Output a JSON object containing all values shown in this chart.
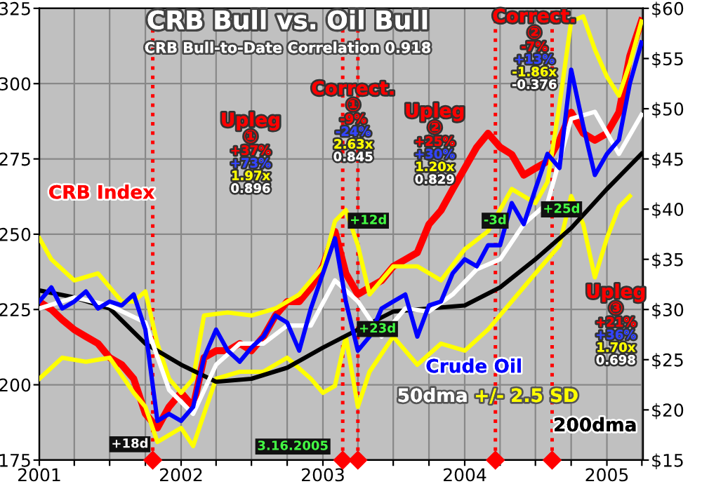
{
  "chart_data": {
    "type": "line",
    "title": "CRB Bull vs. Oil Bull",
    "subtitle": "CRB Bull-to-Date Correlation 0.918",
    "x": [
      "2001-01",
      "2001-02",
      "2001-03",
      "2001-04",
      "2001-05",
      "2001-06",
      "2001-07",
      "2001-08",
      "2001-09",
      "2001-10",
      "2001-11",
      "2001-12",
      "2002-01",
      "2002-02",
      "2002-03",
      "2002-04",
      "2002-05",
      "2002-06",
      "2002-07",
      "2002-08",
      "2002-09",
      "2002-10",
      "2002-11",
      "2002-12",
      "2003-01",
      "2003-02",
      "2003-03",
      "2003-04",
      "2003-05",
      "2003-06",
      "2003-07",
      "2003-08",
      "2003-09",
      "2003-10",
      "2003-11",
      "2003-12",
      "2004-01",
      "2004-02",
      "2004-03",
      "2004-04",
      "2004-05",
      "2004-06",
      "2004-07",
      "2004-08",
      "2004-09",
      "2004-10",
      "2004-11",
      "2004-12",
      "2005-01",
      "2005-02",
      "2005-03",
      "2005-03-31"
    ],
    "series": [
      {
        "name": "+/- 2.5 SD",
        "color": "#ffff00",
        "axis": "y2",
        "x": [
          "2001-01",
          "2001-02",
          "2001-04",
          "2001-06",
          "2001-08",
          "2001-09",
          "2001-10",
          "2001-11",
          "2001-12",
          "2002-01",
          "2002-02",
          "2002-03",
          "2002-05",
          "2002-07",
          "2002-09",
          "2002-11",
          "2003-01",
          "2003-02",
          "2003-03",
          "2003-04",
          "2003-05",
          "2003-07",
          "2003-09",
          "2003-11",
          "2004-01",
          "2004-03",
          "2004-05",
          "2004-07",
          "2004-08",
          "2004-09",
          "2004-10",
          "2004-11",
          "2004-12",
          "2005-01",
          "2005-02",
          "2005-03",
          "2005-03-31"
        ],
        "values": [
          37.1,
          35.0,
          32.9,
          33.6,
          30.8,
          30.8,
          31.8,
          26.6,
          23.1,
          21.7,
          23.1,
          29.4,
          29.7,
          29.4,
          30.1,
          31.5,
          34.3,
          38.8,
          39.9,
          36.4,
          31.5,
          34.3,
          34.3,
          32.9,
          36.0,
          37.8,
          42.0,
          40.6,
          42.7,
          50.4,
          58.7,
          59.2,
          55.9,
          53.2,
          51.3,
          54.5,
          58.7
        ]
      },
      {
        "color": "#ffff00",
        "axis": "y2",
        "x": [
          "2001-01",
          "2001-03",
          "2001-05",
          "2001-07",
          "2001-09",
          "2001-10",
          "2001-11",
          "2002-01",
          "2002-02",
          "2002-03",
          "2002-04",
          "2002-06",
          "2002-08",
          "2002-10",
          "2002-12",
          "2003-01",
          "2003-02",
          "2003-03",
          "2003-04",
          "2003-05",
          "2003-07",
          "2003-09",
          "2003-11",
          "2004-01",
          "2004-03",
          "2004-05",
          "2004-07",
          "2004-09",
          "2004-10",
          "2004-11",
          "2004-12",
          "2005-01",
          "2005-02",
          "2005-03"
        ],
        "values": [
          23.1,
          25.2,
          24.8,
          25.2,
          21.7,
          20.3,
          16.8,
          18.2,
          16.4,
          19.6,
          23.1,
          23.8,
          23.8,
          25.2,
          23.1,
          21.7,
          22.4,
          27.3,
          20.3,
          23.8,
          27.3,
          24.5,
          26.6,
          25.9,
          28.0,
          30.8,
          33.6,
          36.4,
          41.3,
          38.5,
          33.2,
          37.1,
          40.2,
          41.3
        ]
      },
      {
        "name": "200dma",
        "color": "#000000",
        "axis": "y2",
        "x": [
          "2001-01",
          "2001-04",
          "2001-07",
          "2001-10",
          "2002-01",
          "2002-04",
          "2002-07",
          "2002-10",
          "2003-01",
          "2003-04",
          "2003-07",
          "2003-10",
          "2004-01",
          "2004-04",
          "2004-07",
          "2004-10",
          "2005-01",
          "2005-03-31"
        ],
        "values": [
          31.9,
          31.2,
          30.1,
          26.6,
          24.5,
          22.8,
          23.1,
          24.2,
          26.2,
          28.0,
          29.8,
          30.1,
          30.4,
          32.2,
          35.0,
          38.1,
          42.0,
          45.5
        ]
      },
      {
        "name": "50dma",
        "color": "#ffffff",
        "axis": "y2",
        "x": [
          "2001-01",
          "2001-04",
          "2001-07",
          "2001-10",
          "2001-12",
          "2002-02",
          "2002-04",
          "2002-06",
          "2002-08",
          "2002-10",
          "2002-12",
          "2003-02",
          "2003-04",
          "2003-06",
          "2003-08",
          "2003-10",
          "2003-12",
          "2004-02",
          "2004-04",
          "2004-06",
          "2004-08",
          "2004-10",
          "2004-12",
          "2005-02",
          "2005-03-31"
        ],
        "values": [
          30.1,
          31.2,
          30.4,
          28.7,
          22.0,
          19.6,
          24.5,
          26.6,
          26.6,
          28.4,
          28.4,
          32.9,
          30.8,
          27.3,
          30.1,
          29.8,
          31.5,
          34.0,
          35.0,
          38.5,
          40.6,
          49.0,
          49.7,
          45.5,
          49.4
        ]
      },
      {
        "name": "CRB Index",
        "color": "#ff0000",
        "values": [
          227.6,
          225,
          221.6,
          218.3,
          216,
          213.7,
          209,
          206.7,
          202,
          190.4,
          185.7,
          192.7,
          197.4,
          192.7,
          209,
          211.3,
          211.3,
          213.7,
          211.3,
          216,
          223,
          227.6,
          227.6,
          232.3,
          239.3,
          250.9,
          237,
          230,
          232.3,
          234.6,
          239.3,
          241.6,
          243.9,
          253.3,
          257.9,
          264.9,
          271.9,
          278.9,
          283.5,
          278.9,
          276.5,
          269.6,
          271.9,
          274.2,
          281.2,
          290.5,
          283.5,
          281.2,
          283.5,
          290.5,
          309.2,
          320.8
        ]
      },
      {
        "name": "Crude Oil",
        "color": "#0000ff",
        "axis": "y2",
        "values": [
          30.8,
          32.2,
          30.1,
          30.8,
          31.8,
          30.1,
          30.8,
          30.4,
          31.5,
          28.0,
          18.9,
          19.6,
          18.9,
          20.3,
          25.2,
          28.0,
          25.9,
          24.8,
          26.2,
          27.3,
          29.4,
          28.7,
          25.9,
          30.1,
          33.6,
          37.1,
          30.8,
          25.9,
          27.3,
          30.1,
          30.8,
          31.5,
          27.3,
          30.4,
          30.8,
          33.6,
          35.0,
          34.3,
          36.4,
          36.4,
          40.6,
          38.5,
          42.0,
          45.5,
          44.1,
          53.9,
          48.3,
          43.4,
          45.5,
          46.9,
          52.5,
          56.6
        ]
      }
    ],
    "xlim": [
      "2001-01-01",
      "2005-04-04"
    ],
    "xticks": [
      {
        "value": "2001-01-01",
        "label": "2001"
      },
      {
        "value": "2001-04-01",
        "label": null
      },
      {
        "value": "2001-07-01",
        "label": null
      },
      {
        "value": "2001-10-01",
        "label": null
      },
      {
        "value": "2002-01-01",
        "label": "2002"
      },
      {
        "value": "2002-04-01",
        "label": null
      },
      {
        "value": "2002-07-01",
        "label": null
      },
      {
        "value": "2002-10-01",
        "label": null
      },
      {
        "value": "2003-01-01",
        "label": "2003"
      },
      {
        "value": "2003-04-01",
        "label": null
      },
      {
        "value": "2003-07-01",
        "label": null
      },
      {
        "value": "2003-10-01",
        "label": null
      },
      {
        "value": "2004-01-01",
        "label": "2004"
      },
      {
        "value": "2004-04-01",
        "label": null
      },
      {
        "value": "2004-07-01",
        "label": null
      },
      {
        "value": "2004-10-01",
        "label": null
      },
      {
        "value": "2005-01-01",
        "label": "2005"
      },
      {
        "value": "2005-04-01",
        "label": null
      }
    ],
    "ylim": [
      175,
      325
    ],
    "yticks": [
      175,
      200,
      225,
      250,
      275,
      300,
      325
    ],
    "y2lim": [
      15,
      60
    ],
    "y2ticks": [
      {
        "value": 15,
        "label": "$15"
      },
      {
        "value": 20,
        "label": "$20"
      },
      {
        "value": 25,
        "label": "$25"
      },
      {
        "value": 30,
        "label": "$30"
      },
      {
        "value": 35,
        "label": "$35"
      },
      {
        "value": 40,
        "label": "$40"
      },
      {
        "value": 45,
        "label": "$45"
      },
      {
        "value": 50,
        "label": "$50"
      },
      {
        "value": 55,
        "label": "$55"
      },
      {
        "value": 60,
        "label": "$60"
      }
    ],
    "ref_lines": [
      {
        "axis": "x",
        "value": "2001-10-20",
        "color": "#ff0000",
        "line_style": "dotted"
      },
      {
        "axis": "x",
        "value": "2003-02-21",
        "color": "#ff0000",
        "line_style": "dotted"
      },
      {
        "axis": "x",
        "value": "2003-04-01",
        "color": "#ff0000",
        "line_style": "dotted"
      },
      {
        "axis": "x",
        "value": "2004-03-20",
        "color": "#ff0000",
        "line_style": "dotted"
      },
      {
        "axis": "x",
        "value": "2004-08-13",
        "color": "#ff0000",
        "line_style": "dotted"
      }
    ],
    "annotations": [
      "Upleg\n①\n+37%\n+73%\n1.97x\n0.896",
      "Correct.\n①\n-9%\n-24%\n2.63x\n0.845",
      "Upleg\n②\n+25%\n+30%\n1.20x\n0.829",
      "Correct.\n②\n-7%\n+13%\n-1.86x\n-0.376",
      "Upleg\n③\n+21%\n+36%\n1.70x\n0.698",
      "+18d",
      "+12d",
      "+23d",
      "-3d",
      "+25d",
      "3.16.2005"
    ],
    "grid": true,
    "legend": false,
    "line_style": "solid",
    "marker": "none"
  }
}
